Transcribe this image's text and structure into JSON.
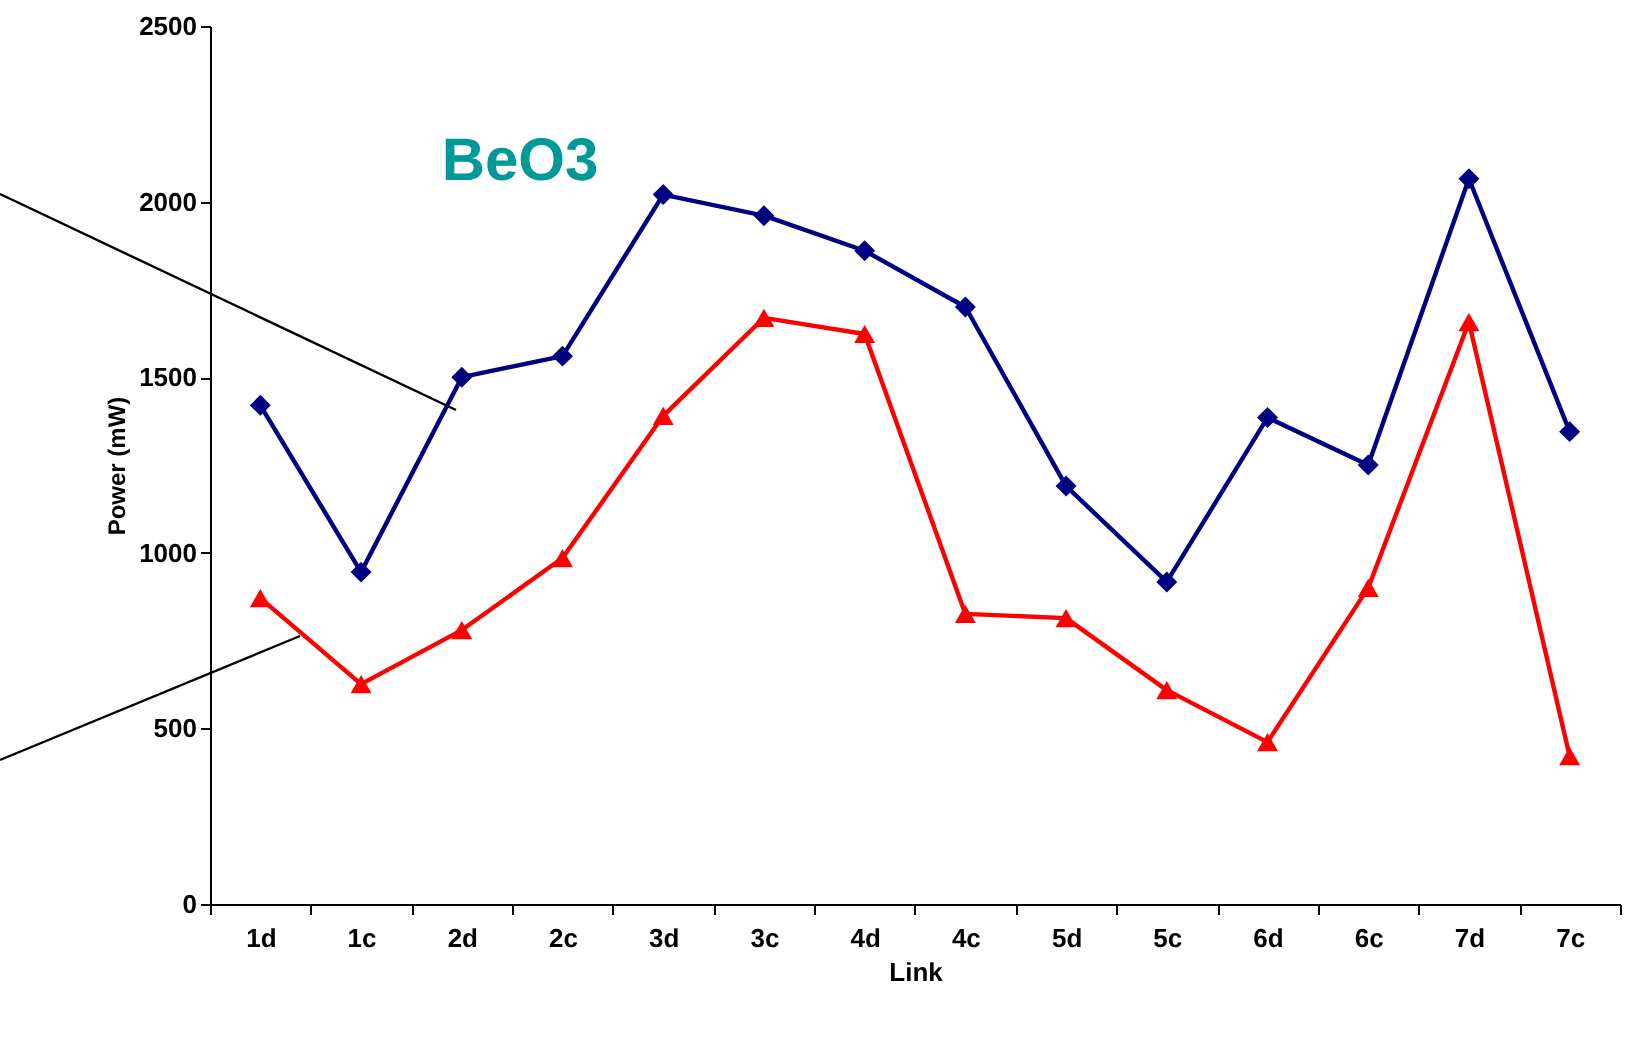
{
  "chart_data": {
    "type": "line",
    "ylabel": "Power (mW)",
    "xlabel": "Link",
    "annotations": [
      "BeO3"
    ],
    "categories": [
      "1d",
      "1c",
      "2d",
      "2c",
      "3d",
      "3c",
      "4d",
      "4c",
      "5d",
      "5c",
      "6d",
      "6c",
      "7d",
      "7c"
    ],
    "ylim": [
      0,
      2500
    ],
    "yticks": [
      0,
      500,
      1000,
      1500,
      2000,
      2500
    ],
    "series": [
      {
        "color": "#000080",
        "marker": "diamond",
        "values": [
          1420,
          945,
          1500,
          1560,
          2020,
          1960,
          1860,
          1700,
          1190,
          917,
          1385,
          1250,
          2065,
          1345
        ]
      },
      {
        "color": "#ff0000",
        "marker": "triangle",
        "values": [
          871,
          626,
          780,
          985,
          1390,
          1669,
          1623,
          826,
          814,
          609,
          461,
          900,
          1657,
          421
        ]
      }
    ]
  }
}
